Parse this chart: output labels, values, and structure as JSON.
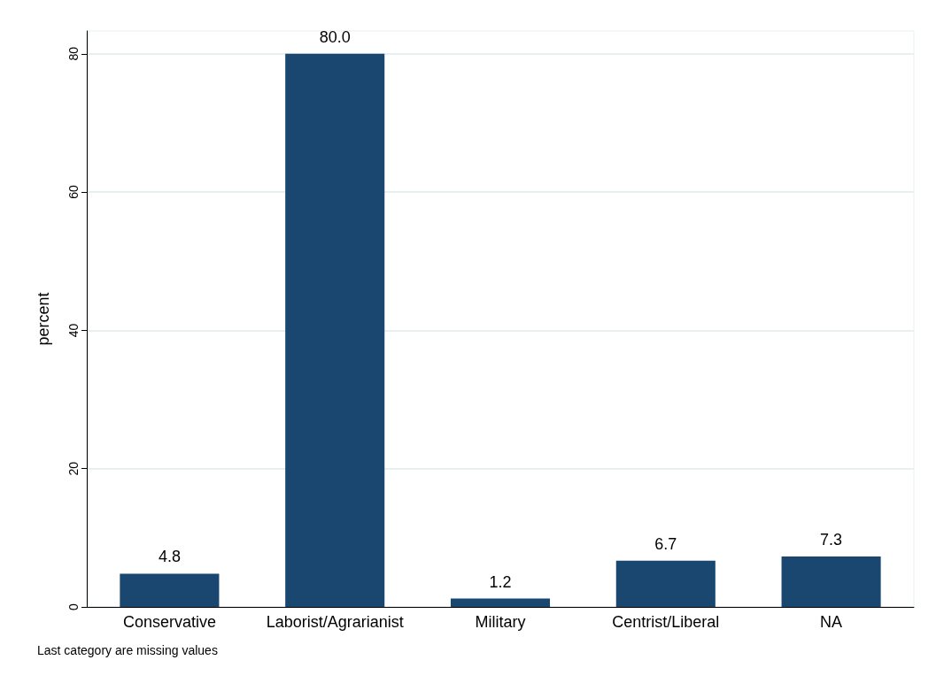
{
  "chart_data": {
    "type": "bar",
    "ylabel": "percent",
    "categories": [
      "Conservative",
      "Laborist/Agrarianist",
      "Military",
      "Centrist/Liberal",
      "NA"
    ],
    "values": [
      4.8,
      80.0,
      1.2,
      6.7,
      7.3
    ],
    "color": "#1a476f",
    "ylim": [
      0,
      83.3
    ],
    "yticks": [
      0,
      20,
      40,
      60,
      80
    ],
    "grid": "y",
    "value_labels": [
      "4.8",
      "80.0",
      "1.2",
      "6.7",
      "7.3"
    ],
    "annotations": [
      "Last category are missing values"
    ]
  }
}
